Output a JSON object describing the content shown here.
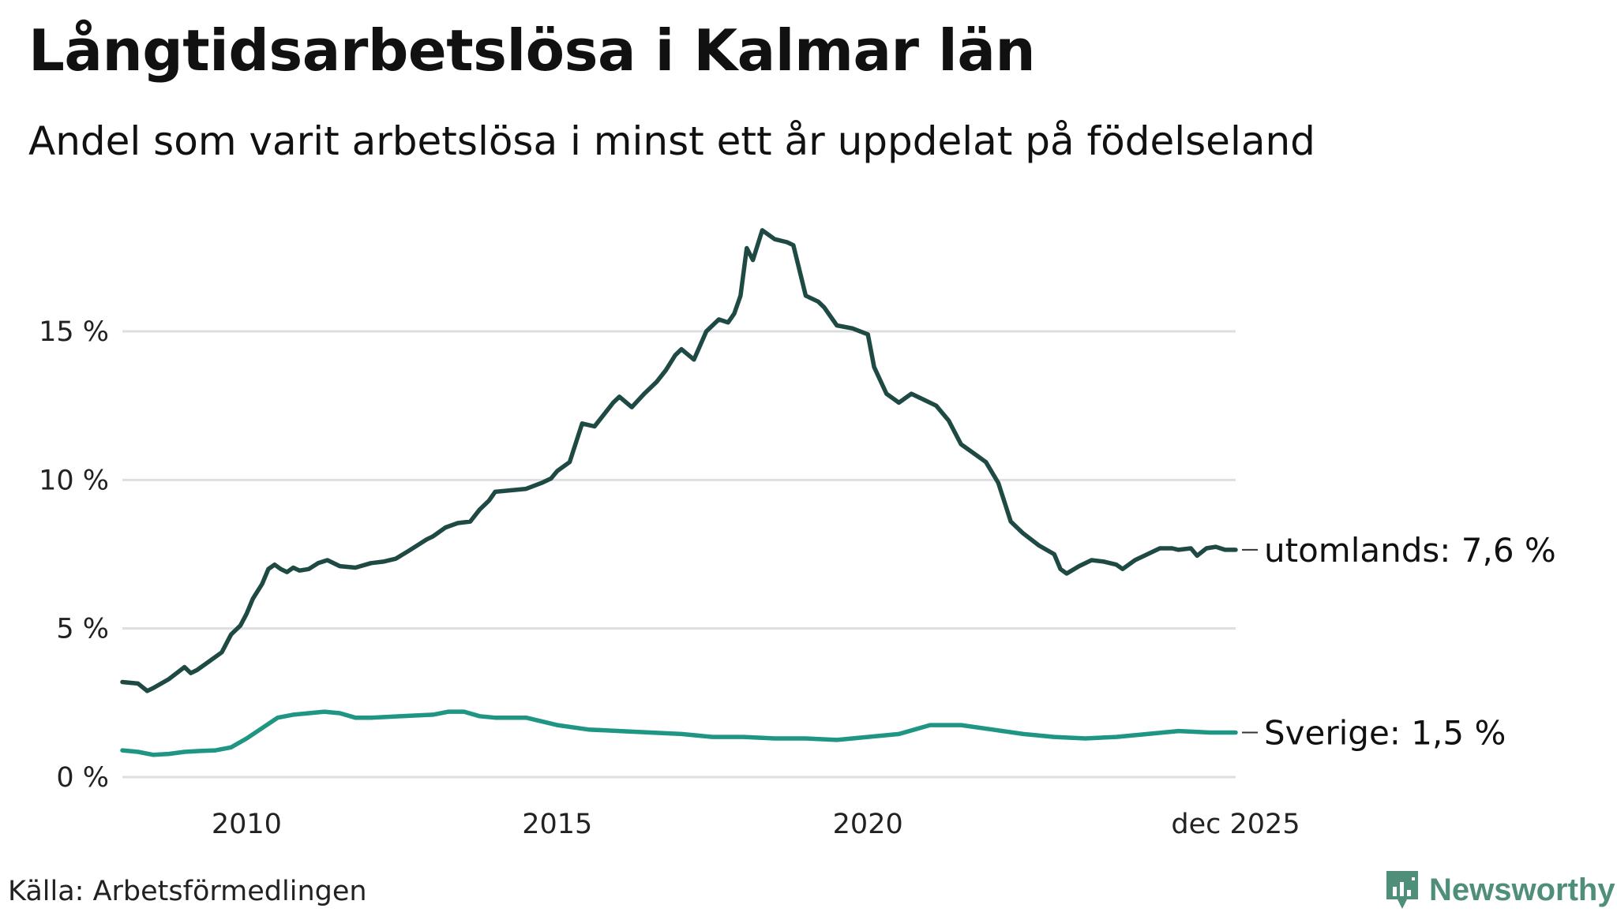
{
  "title": "Långtidsarbetslösa i Kalmar län",
  "subtitle": "Andel som varit arbetslösa i minst ett år uppdelat på födelseland",
  "source": "Källa: Arbetsförmedlingen",
  "brand": {
    "name": "Newsworthy",
    "icon": "newsworthy-logo-icon",
    "color": "#4f8f7a"
  },
  "chart_data": {
    "type": "line",
    "title": "Långtidsarbetslösa i Kalmar län",
    "xlabel": "",
    "ylabel": "",
    "xlim": [
      2008.0,
      2025.92
    ],
    "ylim": [
      0,
      18.5
    ],
    "grid": true,
    "y_ticks": [
      0,
      5,
      10,
      15
    ],
    "y_tick_labels": [
      "0 %",
      "5 %",
      "10 %",
      "15 %"
    ],
    "x_ticks": [
      2010,
      2015,
      2020,
      2025.92
    ],
    "x_tick_labels": [
      "2010",
      "2015",
      "2020",
      "dec 2025"
    ],
    "series": [
      {
        "name": "utomlands",
        "end_label": "utomlands: 7,6 %",
        "color": "#1f4a44",
        "x": [
          2008.0,
          2008.25,
          2008.4,
          2008.5,
          2008.75,
          2009.0,
          2009.1,
          2009.2,
          2009.4,
          2009.6,
          2009.75,
          2009.9,
          2010.0,
          2010.1,
          2010.25,
          2010.35,
          2010.45,
          2010.55,
          2010.65,
          2010.75,
          2010.85,
          2011.0,
          2011.15,
          2011.3,
          2011.5,
          2011.75,
          2012.0,
          2012.2,
          2012.4,
          2012.6,
          2012.75,
          2012.9,
          2013.0,
          2013.2,
          2013.4,
          2013.6,
          2013.75,
          2013.9,
          2014.0,
          2014.25,
          2014.5,
          2014.75,
          2014.9,
          2015.0,
          2015.2,
          2015.4,
          2015.6,
          2015.75,
          2015.9,
          2016.0,
          2016.2,
          2016.4,
          2016.6,
          2016.75,
          2016.9,
          2017.0,
          2017.2,
          2017.4,
          2017.6,
          2017.75,
          2017.85,
          2017.95,
          2018.05,
          2018.15,
          2018.3,
          2018.5,
          2018.7,
          2018.8,
          2019.0,
          2019.2,
          2019.3,
          2019.5,
          2019.75,
          2020.0,
          2020.1,
          2020.3,
          2020.5,
          2020.7,
          2020.9,
          2021.1,
          2021.3,
          2021.5,
          2021.7,
          2021.9,
          2022.1,
          2022.3,
          2022.5,
          2022.75,
          2023.0,
          2023.1,
          2023.2,
          2023.4,
          2023.6,
          2023.8,
          2024.0,
          2024.1,
          2024.3,
          2024.5,
          2024.7,
          2024.9,
          2025.0,
          2025.2,
          2025.3,
          2025.45,
          2025.6,
          2025.75,
          2025.92
        ],
        "values": [
          3.2,
          3.15,
          2.9,
          3.0,
          3.3,
          3.7,
          3.5,
          3.6,
          3.9,
          4.2,
          4.8,
          5.1,
          5.5,
          6.0,
          6.5,
          7.0,
          7.15,
          7.0,
          6.9,
          7.05,
          6.95,
          7.0,
          7.2,
          7.3,
          7.1,
          7.05,
          7.2,
          7.25,
          7.35,
          7.6,
          7.8,
          8.0,
          8.1,
          8.4,
          8.55,
          8.6,
          9.0,
          9.3,
          9.6,
          9.65,
          9.7,
          9.9,
          10.05,
          10.3,
          10.6,
          11.9,
          11.8,
          12.2,
          12.6,
          12.8,
          12.45,
          12.9,
          13.3,
          13.7,
          14.2,
          14.4,
          14.05,
          15.0,
          15.4,
          15.3,
          15.6,
          16.2,
          17.8,
          17.4,
          18.4,
          18.1,
          18.0,
          17.9,
          16.2,
          16.0,
          15.8,
          15.2,
          15.1,
          14.9,
          13.8,
          12.9,
          12.6,
          12.9,
          12.7,
          12.5,
          12.0,
          11.2,
          10.9,
          10.6,
          9.9,
          8.6,
          8.2,
          7.8,
          7.5,
          7.0,
          6.85,
          7.1,
          7.3,
          7.25,
          7.15,
          7.0,
          7.3,
          7.5,
          7.7,
          7.7,
          7.65,
          7.7,
          7.45,
          7.7,
          7.75,
          7.65,
          7.65
        ]
      },
      {
        "name": "Sverige",
        "end_label": "Sverige: 1,5 %",
        "color": "#1e9683",
        "x": [
          2008.0,
          2008.25,
          2008.5,
          2008.75,
          2009.0,
          2009.25,
          2009.5,
          2009.75,
          2010.0,
          2010.25,
          2010.5,
          2010.75,
          2011.0,
          2011.25,
          2011.5,
          2011.75,
          2012.0,
          2012.5,
          2013.0,
          2013.25,
          2013.5,
          2013.75,
          2014.0,
          2014.5,
          2015.0,
          2015.5,
          2016.0,
          2016.5,
          2017.0,
          2017.5,
          2018.0,
          2018.5,
          2019.0,
          2019.5,
          2020.0,
          2020.5,
          2021.0,
          2021.5,
          2022.0,
          2022.5,
          2023.0,
          2023.5,
          2024.0,
          2024.5,
          2025.0,
          2025.5,
          2025.92
        ],
        "values": [
          0.9,
          0.85,
          0.75,
          0.78,
          0.85,
          0.88,
          0.9,
          1.0,
          1.3,
          1.65,
          2.0,
          2.1,
          2.15,
          2.2,
          2.15,
          2.0,
          2.0,
          2.05,
          2.1,
          2.2,
          2.2,
          2.05,
          2.0,
          2.0,
          1.75,
          1.6,
          1.55,
          1.5,
          1.45,
          1.35,
          1.35,
          1.3,
          1.3,
          1.25,
          1.35,
          1.45,
          1.75,
          1.75,
          1.6,
          1.45,
          1.35,
          1.3,
          1.35,
          1.45,
          1.55,
          1.5,
          1.5
        ]
      }
    ]
  }
}
